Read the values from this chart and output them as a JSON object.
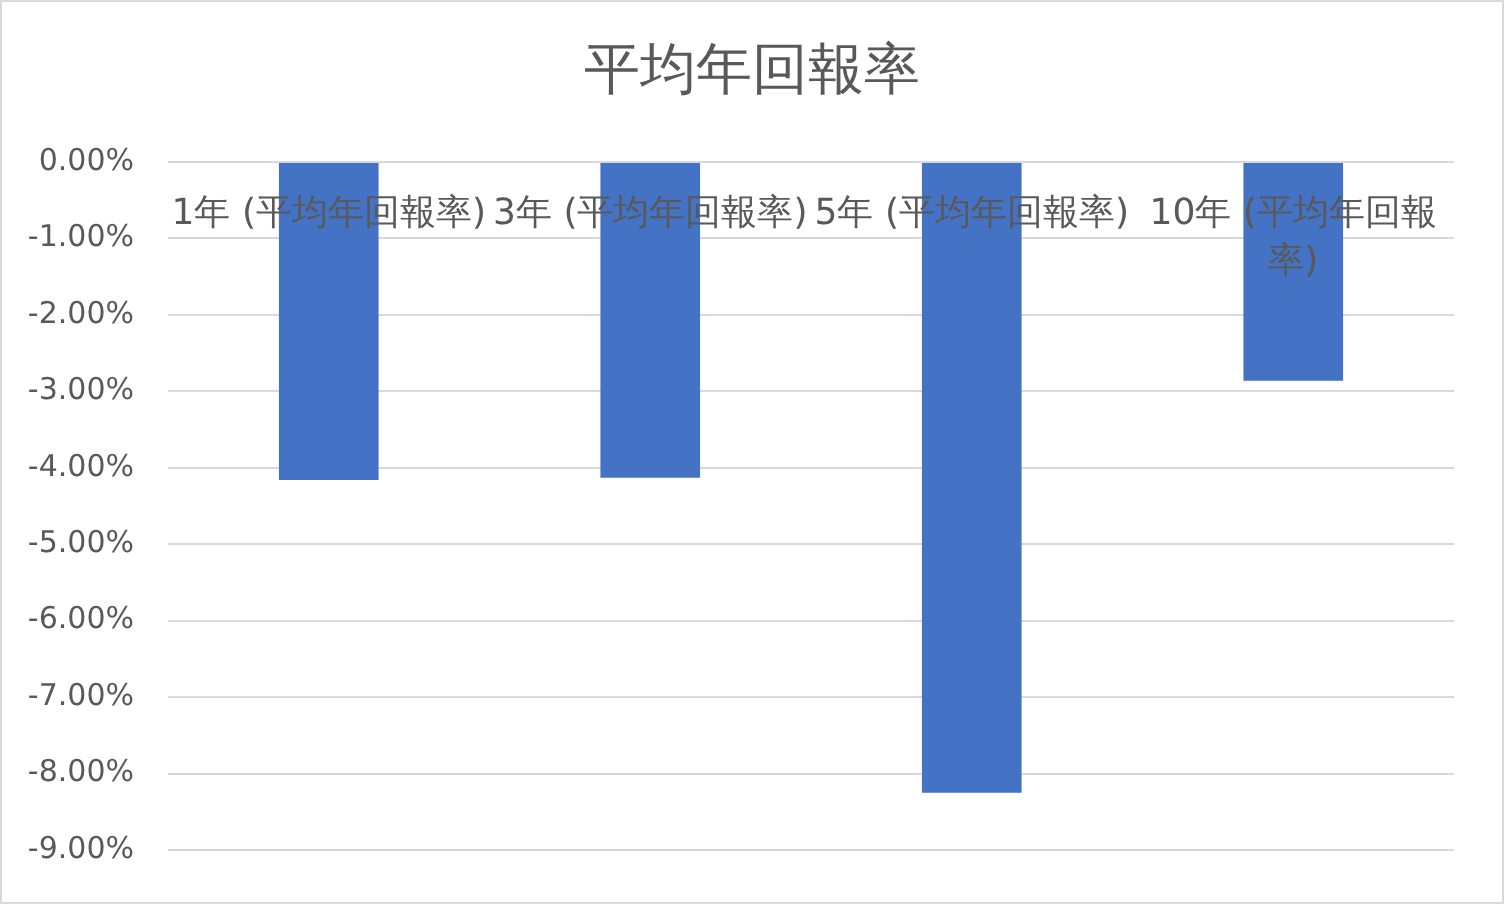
{
  "chart_data": {
    "type": "bar",
    "title": "平均年回報率",
    "categories": [
      "1年 (平均年回報率)",
      "3年 (平均年回報率)",
      "5年 (平均年回報率)",
      "10年 (平均年回報率)"
    ],
    "values": [
      -4.16,
      -4.13,
      -8.25,
      -2.86
    ],
    "color": "#4472c4",
    "ylim": [
      -9,
      0
    ],
    "yticks": [
      {
        "value": 0,
        "label": "0.00%"
      },
      {
        "value": -1,
        "label": "-1.00%"
      },
      {
        "value": -2,
        "label": "-2.00%"
      },
      {
        "value": -3,
        "label": "-3.00%"
      },
      {
        "value": -4,
        "label": "-4.00%"
      },
      {
        "value": -5,
        "label": "-5.00%"
      },
      {
        "value": -6,
        "label": "-6.00%"
      },
      {
        "value": -7,
        "label": "-7.00%"
      },
      {
        "value": -8,
        "label": "-8.00%"
      },
      {
        "value": -9,
        "label": "-9.00%"
      }
    ],
    "grid": "y"
  }
}
